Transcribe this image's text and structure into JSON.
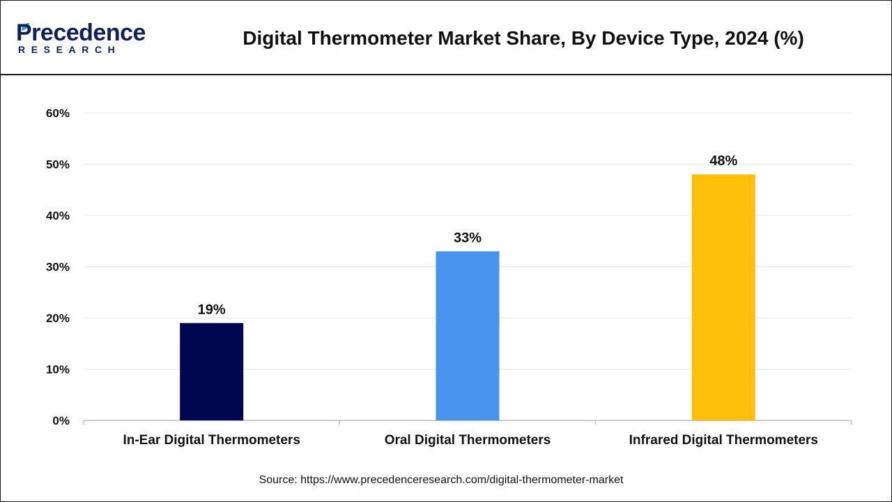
{
  "brand": {
    "name": "Precedence",
    "tagline": "RESEARCH",
    "color": "#12205a",
    "accent": "#2aa6e0"
  },
  "source_text": "Source: https://www.precedenceresearch.com/digital-thermometer-market",
  "chart_data": {
    "type": "bar",
    "title": "Digital Thermometer Market Share, By Device Type, 2024 (%)",
    "categories": [
      "In-Ear Digital Thermometers",
      "Oral Digital Thermometers",
      "Infrared Digital Thermometers"
    ],
    "values": [
      19,
      33,
      48
    ],
    "data_labels": [
      "19%",
      "33%",
      "48%"
    ],
    "colors": [
      "#000650",
      "#4694ec",
      "#fdbf0a"
    ],
    "xlabel": "",
    "ylabel": "",
    "ylim": [
      0,
      60
    ],
    "yticks": [
      0,
      10,
      20,
      30,
      40,
      50,
      60
    ],
    "ytick_labels": [
      "0%",
      "10%",
      "20%",
      "30%",
      "40%",
      "50%",
      "60%"
    ],
    "grid": true,
    "legend": "none"
  }
}
